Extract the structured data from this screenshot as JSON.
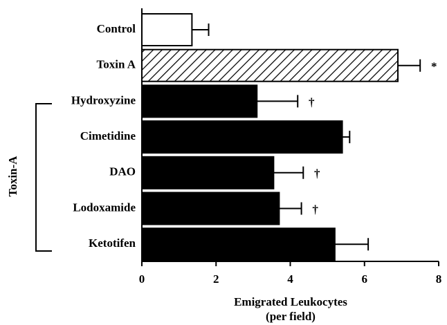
{
  "chart_data": {
    "type": "hbar",
    "categories": [
      "Control",
      "Toxin A",
      "Hydroxyzine",
      "Cimetidine",
      "DAO",
      "Lodoxamide",
      "Ketotifen"
    ],
    "values": [
      1.35,
      6.9,
      3.1,
      5.4,
      3.55,
      3.7,
      5.2
    ],
    "errors": [
      0.45,
      0.6,
      1.1,
      0.2,
      0.8,
      0.6,
      0.9
    ],
    "fills": [
      "white",
      "hatched",
      "black",
      "black",
      "black",
      "black",
      "black"
    ],
    "xlim": [
      0,
      8
    ],
    "xticks": [
      0,
      2,
      4,
      6,
      8
    ],
    "xlabel_lines": [
      "Emigrated Leukocytes",
      "(per field)"
    ],
    "group_label": "Toxin-A",
    "annotations": [
      {
        "category": "Toxin A",
        "text": "*"
      },
      {
        "category": "Hydroxyzine",
        "text": "†"
      },
      {
        "category": "DAO",
        "text": "†"
      },
      {
        "category": "Lodoxamide",
        "text": "†"
      }
    ]
  }
}
